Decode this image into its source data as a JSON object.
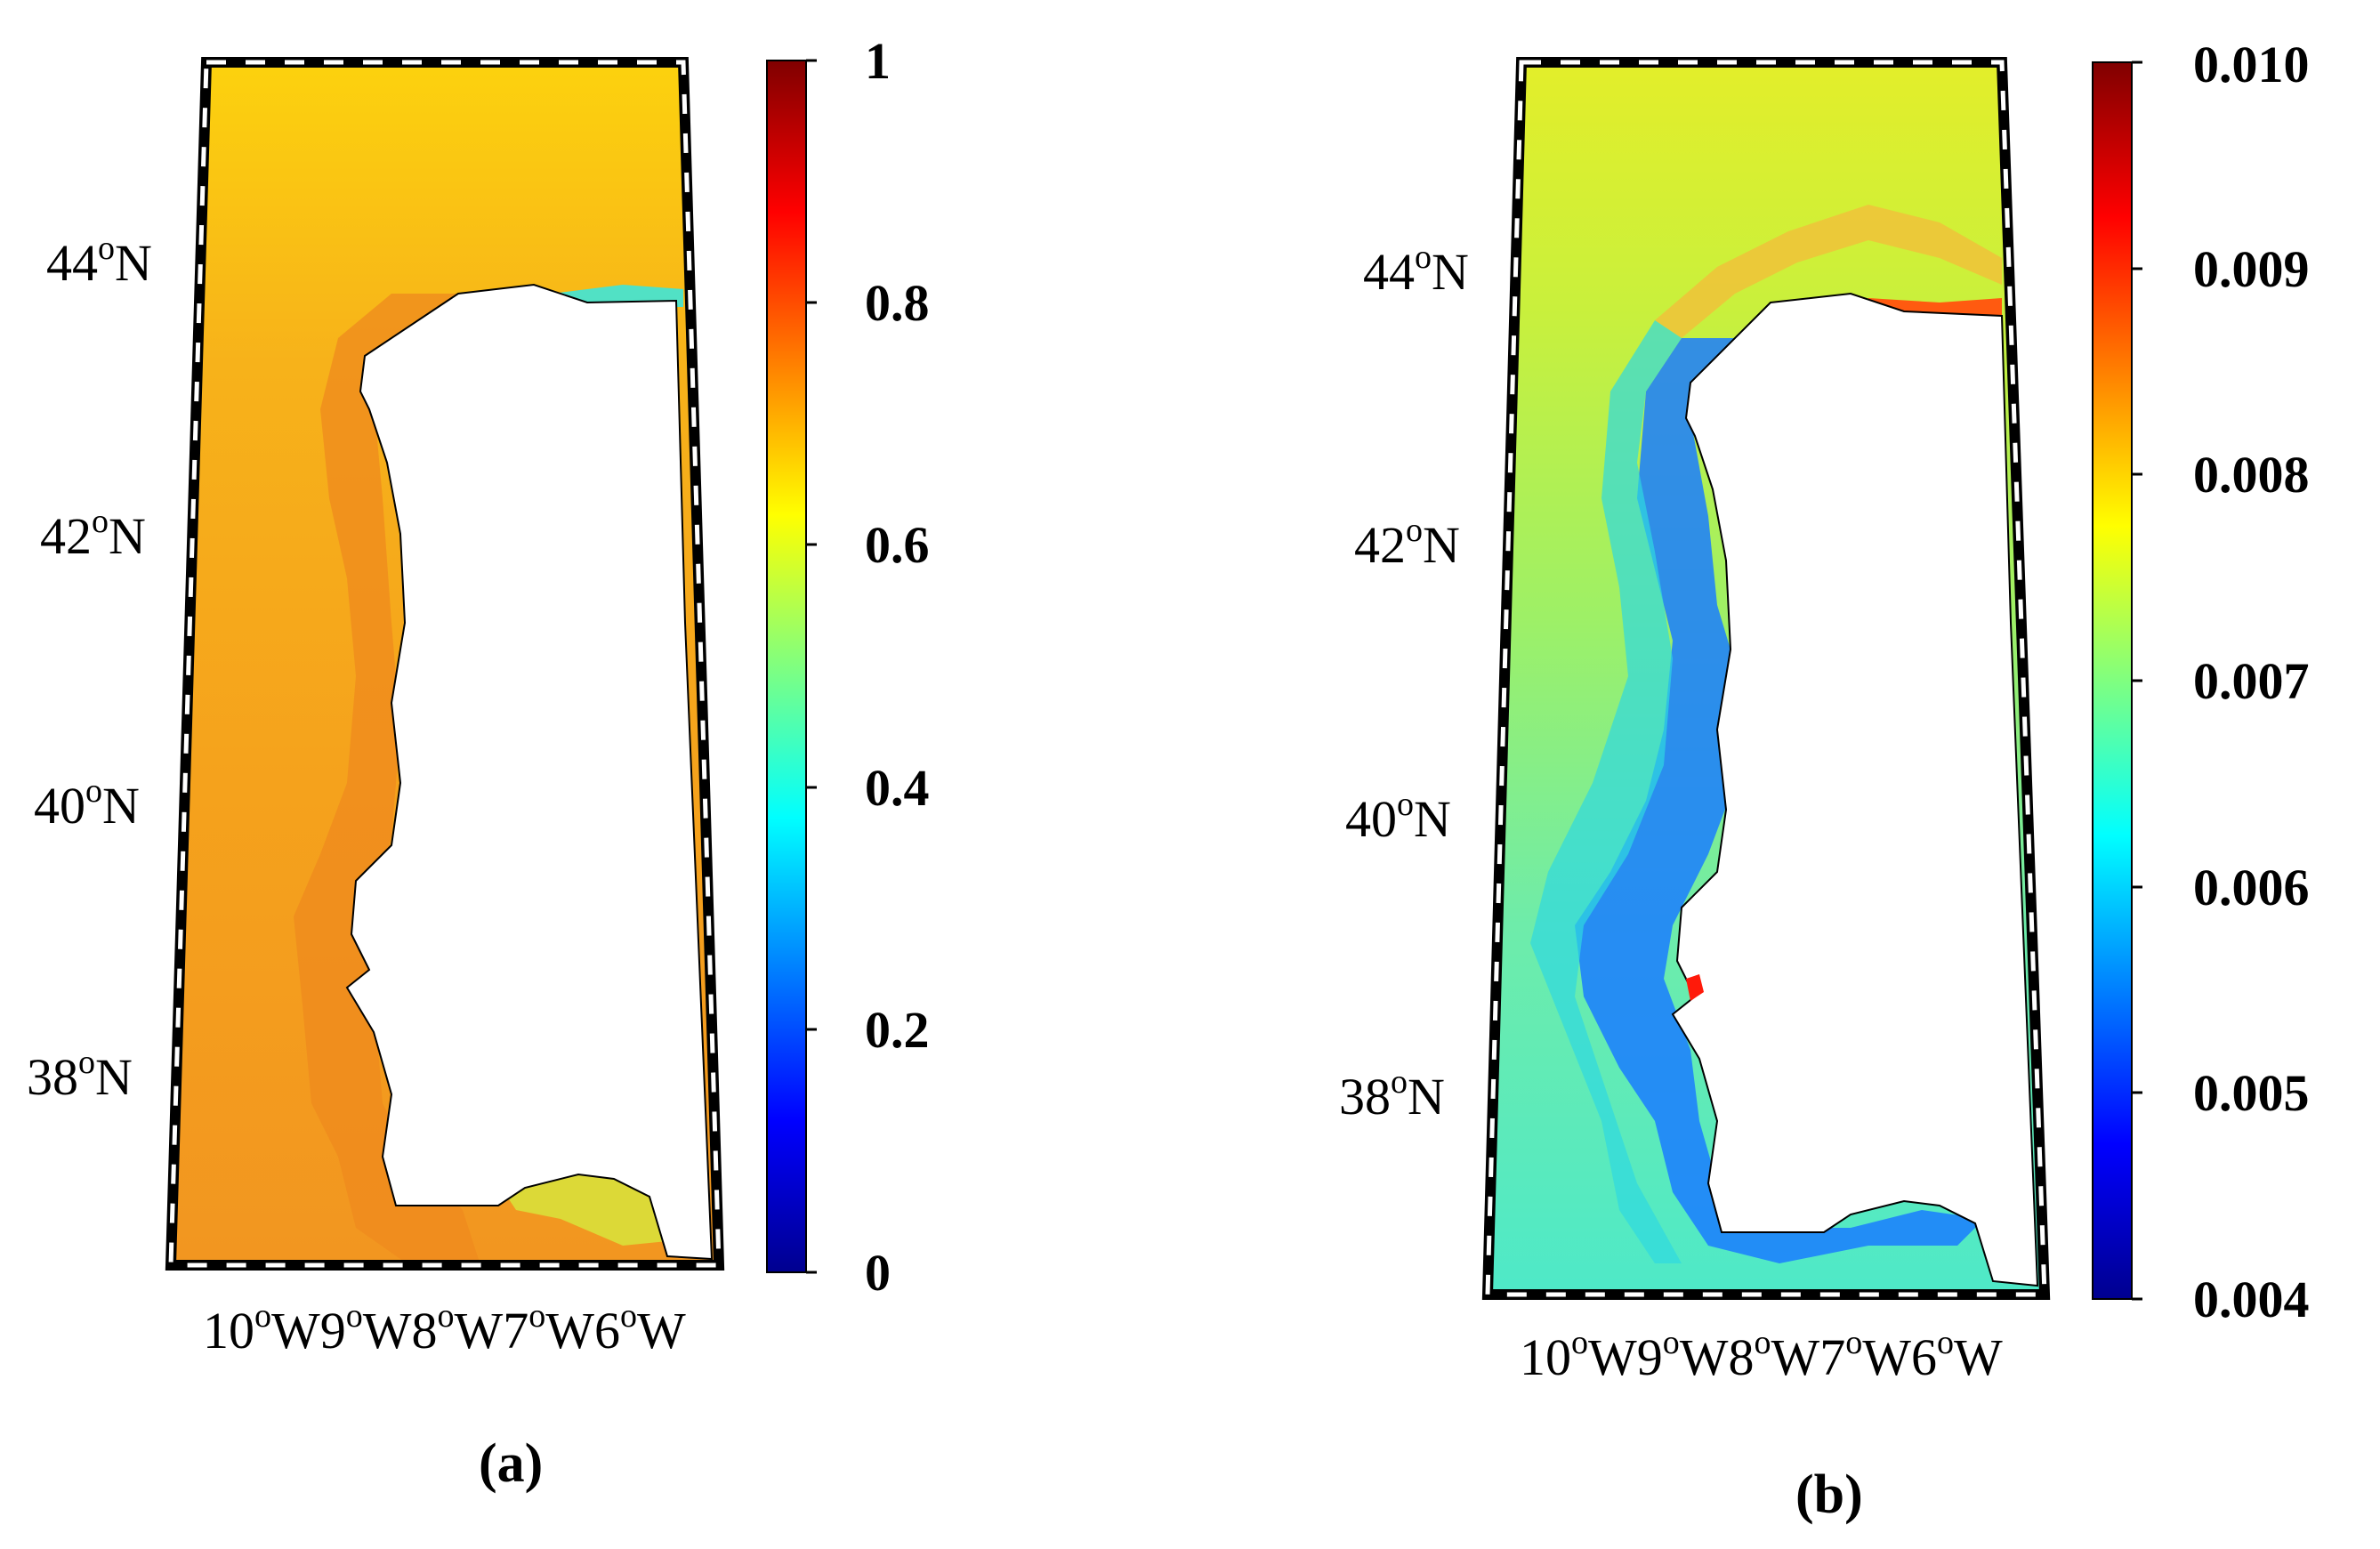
{
  "panels": [
    {
      "id": "a",
      "label": "(a)",
      "colorbar": {
        "ticks": [
          "1",
          "0.8",
          "0.6",
          "0.4",
          "0.2",
          "0"
        ]
      },
      "latitudes": [
        {
          "deg": "44",
          "sup": "o",
          "hemi": "N"
        },
        {
          "deg": "42",
          "sup": "o",
          "hemi": "N"
        },
        {
          "deg": "40",
          "sup": "o",
          "hemi": "N"
        },
        {
          "deg": "38",
          "sup": "o",
          "hemi": "N"
        }
      ],
      "longitudes": [
        {
          "deg": "10",
          "sup": "o",
          "hemi": "W"
        },
        {
          "deg": "9",
          "sup": "o",
          "hemi": "W"
        },
        {
          "deg": "8",
          "sup": "o",
          "hemi": "W"
        },
        {
          "deg": "7",
          "sup": "o",
          "hemi": "W"
        },
        {
          "deg": "6",
          "sup": "o",
          "hemi": "W"
        }
      ]
    },
    {
      "id": "b",
      "label": "(b)",
      "colorbar": {
        "ticks": [
          "0.010",
          "0.009",
          "0.008",
          "0.007",
          "0.006",
          "0.005",
          "0.004"
        ]
      },
      "latitudes": [
        {
          "deg": "44",
          "sup": "o",
          "hemi": "N"
        },
        {
          "deg": "42",
          "sup": "o",
          "hemi": "N"
        },
        {
          "deg": "40",
          "sup": "o",
          "hemi": "N"
        },
        {
          "deg": "38",
          "sup": "o",
          "hemi": "N"
        }
      ],
      "longitudes": [
        {
          "deg": "10",
          "sup": "o",
          "hemi": "W"
        },
        {
          "deg": "9",
          "sup": "o",
          "hemi": "W"
        },
        {
          "deg": "8",
          "sup": "o",
          "hemi": "W"
        },
        {
          "deg": "7",
          "sup": "o",
          "hemi": "W"
        },
        {
          "deg": "6",
          "sup": "o",
          "hemi": "W"
        }
      ]
    }
  ],
  "colors": {
    "jet_stops": [
      "#00008f",
      "#0000ff",
      "#00ffff",
      "#ffff00",
      "#ff0000",
      "#800000"
    ],
    "panel_a_ocean": "#f5a21c",
    "panel_a_ocean_offshore": "#f7b21a",
    "panel_a_ocean_north": "#fcd20e",
    "panel_a_coastal_band": "#ef8a1e",
    "panel_b_ocean_north": "#e3ee2a",
    "panel_b_ocean_mid": "#9ef066",
    "panel_b_ocean_south": "#4ee9c8",
    "panel_b_coastal_band": "#1a7cff",
    "panel_b_hotspot": "#ff2a10",
    "land": "#ffffff"
  }
}
